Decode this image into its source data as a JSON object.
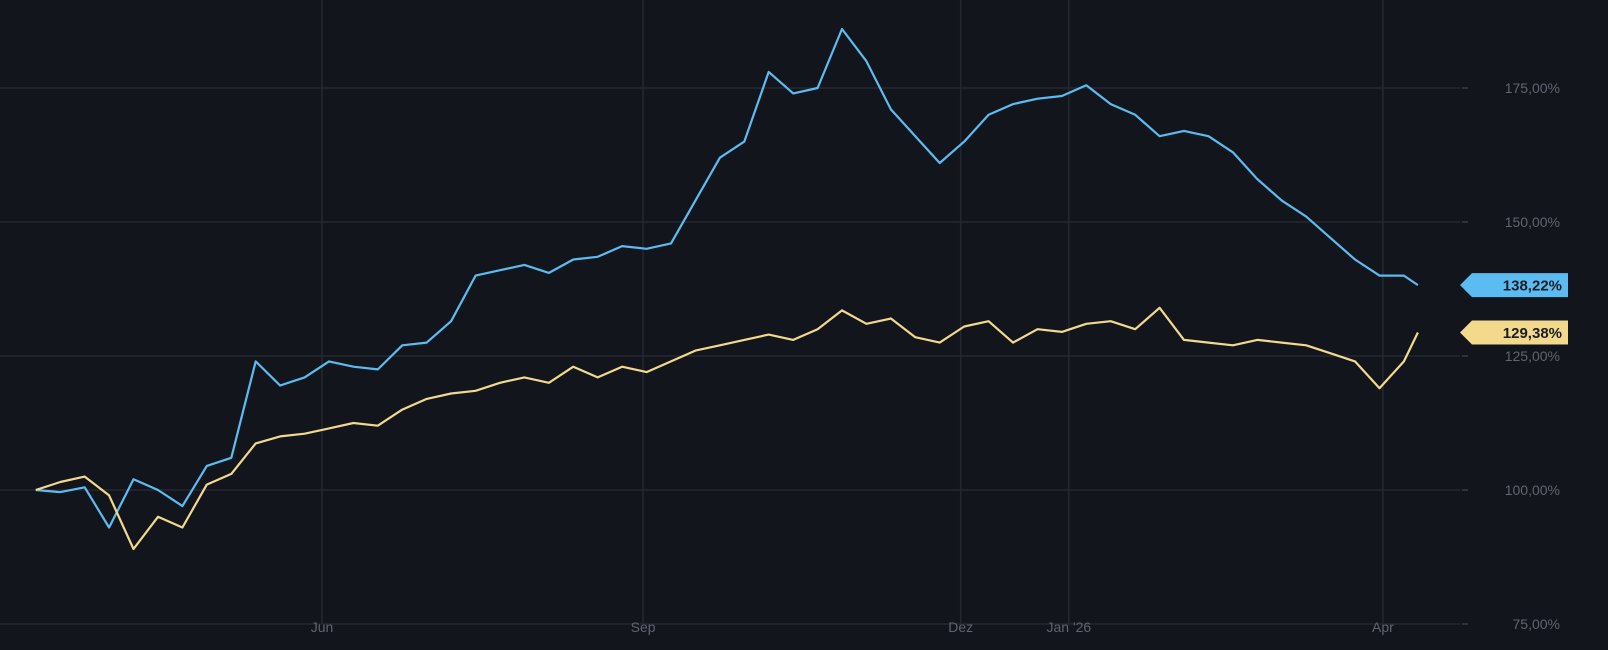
{
  "chart_data": {
    "type": "line",
    "title": "",
    "xlabel": "",
    "ylabel": "",
    "x_ticks": [
      {
        "date": "2025-06-01",
        "label": "Jun"
      },
      {
        "date": "2025-09-01",
        "label": "Sep"
      },
      {
        "date": "2025-12-01",
        "label": "Dez"
      },
      {
        "date": "2026-01-01",
        "label": "Jan '26"
      },
      {
        "date": "2026-04-01",
        "label": "Apr"
      }
    ],
    "y_ticks": [
      {
        "value": 75,
        "label": "75,00%"
      },
      {
        "value": 100,
        "label": "100,00%"
      },
      {
        "value": 125,
        "label": "125,00%"
      },
      {
        "value": 150,
        "label": "150,00%"
      },
      {
        "value": 175,
        "label": "175,00%"
      }
    ],
    "ylim": [
      75,
      190
    ],
    "xlim": [
      "2025-03-11",
      "2026-04-11"
    ],
    "y_axis_position": "right",
    "grid": true,
    "background": "#12151b",
    "dates": [
      "2025-03-11",
      "2025-03-18",
      "2025-03-25",
      "2025-04-01",
      "2025-04-08",
      "2025-04-15",
      "2025-04-22",
      "2025-04-29",
      "2025-05-06",
      "2025-05-13",
      "2025-05-20",
      "2025-05-27",
      "2025-06-03",
      "2025-06-10",
      "2025-06-17",
      "2025-06-24",
      "2025-07-01",
      "2025-07-08",
      "2025-07-15",
      "2025-07-22",
      "2025-07-29",
      "2025-08-05",
      "2025-08-12",
      "2025-08-19",
      "2025-08-26",
      "2025-09-02",
      "2025-09-09",
      "2025-09-16",
      "2025-09-23",
      "2025-09-30",
      "2025-10-07",
      "2025-10-14",
      "2025-10-21",
      "2025-10-28",
      "2025-11-04",
      "2025-11-11",
      "2025-11-18",
      "2025-11-25",
      "2025-12-02",
      "2025-12-09",
      "2025-12-16",
      "2025-12-23",
      "2025-12-30",
      "2026-01-06",
      "2026-01-13",
      "2026-01-20",
      "2026-01-27",
      "2026-02-03",
      "2026-02-10",
      "2026-02-17",
      "2026-02-24",
      "2026-03-03",
      "2026-03-10",
      "2026-03-17",
      "2026-03-24",
      "2026-03-31",
      "2026-04-07",
      "2026-04-11"
    ],
    "series": [
      {
        "color": "#5bbcf2",
        "last_label": "138,22%",
        "values": [
          100,
          99.6,
          100.5,
          93,
          102,
          100,
          97,
          104.5,
          106,
          124,
          119.5,
          121,
          124,
          123,
          122.5,
          127,
          127.5,
          131.5,
          140,
          141,
          142,
          140.5,
          143,
          143.5,
          145.5,
          145,
          146,
          154,
          162,
          165,
          178,
          174,
          175,
          186,
          180,
          171,
          166,
          161,
          165,
          170,
          172,
          173,
          173.5,
          175.5,
          172,
          170,
          166,
          167,
          166,
          163,
          158,
          154,
          151,
          147,
          143,
          140,
          140,
          138.22
        ]
      },
      {
        "color": "#f2d98c",
        "last_label": "129,38%",
        "values": [
          100,
          101.5,
          102.5,
          99,
          89,
          95,
          93,
          101,
          103,
          108.7,
          110,
          110.5,
          111.5,
          112.5,
          112,
          115,
          117,
          118,
          118.5,
          120,
          121,
          120,
          123,
          121,
          123,
          122,
          124,
          126,
          127,
          128,
          129,
          128,
          130,
          133.5,
          131,
          132,
          128.5,
          127.5,
          130.5,
          131.5,
          127.5,
          130,
          129.5,
          131,
          131.5,
          130,
          134,
          128,
          127.5,
          127,
          128,
          127.5,
          127,
          125.5,
          124,
          119,
          124,
          129.38
        ]
      }
    ]
  }
}
